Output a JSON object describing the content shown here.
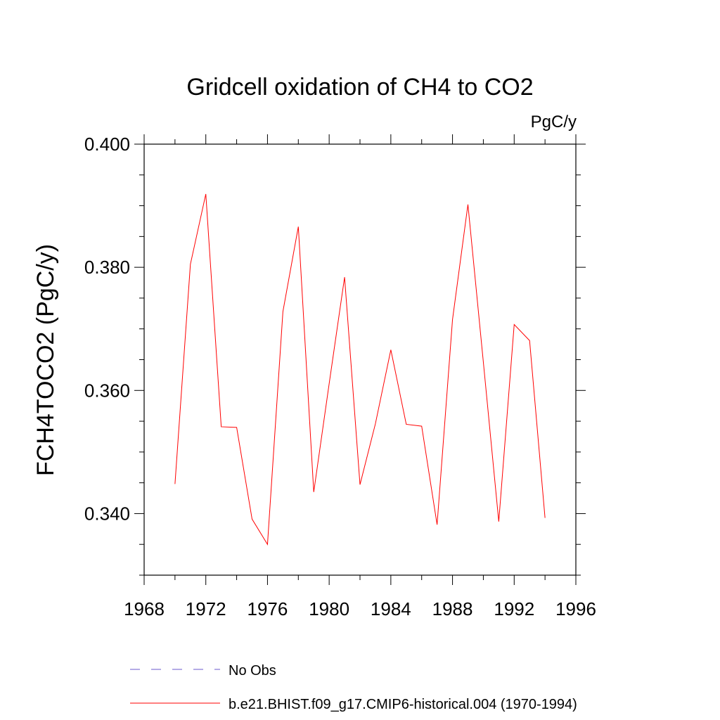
{
  "chart_data": {
    "type": "line",
    "title": "Gridcell oxidation of CH4 to CO2",
    "units_label": "PgC/y",
    "ylabel": "FCH4TOCO2  (PgC/y)",
    "xlabel": "",
    "xlim": [
      1968,
      1996
    ],
    "ylim": [
      0.33,
      0.4
    ],
    "x_ticks": [
      "1968",
      "1972",
      "1976",
      "1980",
      "1984",
      "1988",
      "1992",
      "1996"
    ],
    "y_ticks": [
      "0.340",
      "0.360",
      "0.380",
      "0.400"
    ],
    "grid": false,
    "legend_placement": "bottom",
    "series": [
      {
        "name": "No Obs",
        "color": "#6a5acd",
        "dash": "dashed",
        "x": [],
        "values": []
      },
      {
        "name": "b.e21.BHIST.f09_g17.CMIP6-historical.004 (1970-1994)",
        "color": "#ff0000",
        "dash": "solid",
        "x": [
          1970,
          1971,
          1972,
          1973,
          1974,
          1975,
          1976,
          1977,
          1978,
          1979,
          1980,
          1981,
          1982,
          1983,
          1984,
          1985,
          1986,
          1987,
          1988,
          1989,
          1990,
          1991,
          1992,
          1993,
          1994
        ],
        "values": [
          0.3448,
          0.3805,
          0.3919,
          0.3541,
          0.354,
          0.3391,
          0.335,
          0.3728,
          0.3866,
          0.3435,
          0.3611,
          0.3784,
          0.3447,
          0.3546,
          0.3666,
          0.3545,
          0.3542,
          0.3382,
          0.3715,
          0.3902,
          0.3646,
          0.3387,
          0.3707,
          0.3681,
          0.3393
        ]
      }
    ]
  }
}
